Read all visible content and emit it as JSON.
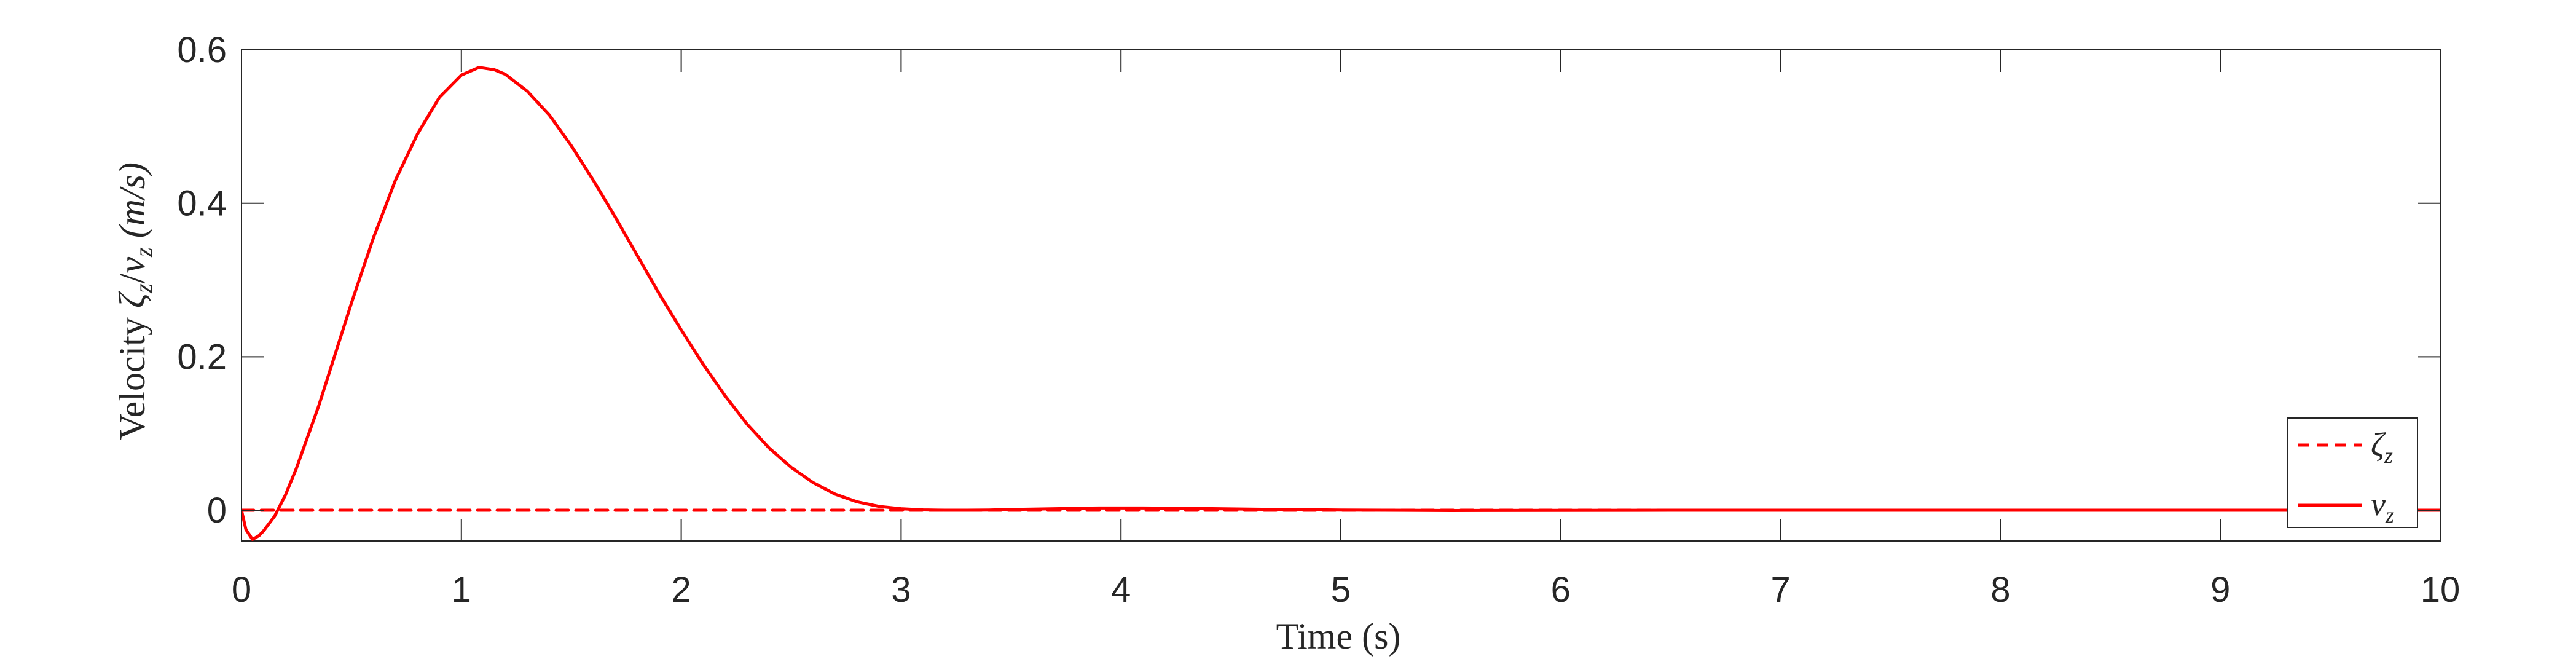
{
  "chart_data": {
    "type": "line",
    "title": "",
    "xlabel": {
      "prefix": "Time ",
      "unit": "(s)"
    },
    "ylabel": {
      "prefix": "Velocity ",
      "sym1": "ζ",
      "sub1": "z",
      "slash": "/",
      "sym2": "v",
      "sub2": "z",
      "unit": " (m/s)"
    },
    "xlim": [
      0,
      10
    ],
    "ylim": [
      -0.04,
      0.6
    ],
    "xticks": [
      "0",
      "1",
      "2",
      "3",
      "4",
      "5",
      "6",
      "7",
      "8",
      "9",
      "10"
    ],
    "yticks": [
      "0",
      "0.2",
      "0.4",
      "0.6"
    ],
    "ytick_values": [
      0,
      0.2,
      0.4,
      0.6
    ],
    "grid": false,
    "legend_position": "right",
    "series": [
      {
        "name": "ζ_z",
        "symbol": "ζ",
        "sub": "z",
        "color": "#ff0000",
        "style": "dashed",
        "x": [
          0,
          10
        ],
        "values": [
          0,
          0
        ]
      },
      {
        "name": "v_z",
        "symbol": "v",
        "sub": "z",
        "color": "#ff0000",
        "style": "solid",
        "x": [
          0,
          0.02,
          0.05,
          0.08,
          0.1,
          0.15,
          0.2,
          0.25,
          0.3,
          0.35,
          0.4,
          0.5,
          0.6,
          0.7,
          0.8,
          0.9,
          1.0,
          1.08,
          1.15,
          1.2,
          1.3,
          1.4,
          1.5,
          1.6,
          1.7,
          1.8,
          1.9,
          2.0,
          2.1,
          2.2,
          2.3,
          2.4,
          2.5,
          2.6,
          2.7,
          2.8,
          2.9,
          3.0,
          3.1,
          3.2,
          3.3,
          3.4,
          3.5,
          3.7,
          3.9,
          4.0,
          4.1,
          4.3,
          4.5,
          4.7,
          5.0,
          5.5,
          6.0,
          6.5,
          7.0,
          8.0,
          9.0,
          10.0
        ],
        "values": [
          0,
          -0.025,
          -0.038,
          -0.033,
          -0.027,
          -0.008,
          0.02,
          0.055,
          0.095,
          0.135,
          0.18,
          0.27,
          0.355,
          0.43,
          0.49,
          0.538,
          0.567,
          0.577,
          0.574,
          0.568,
          0.546,
          0.515,
          0.475,
          0.43,
          0.382,
          0.332,
          0.282,
          0.235,
          0.19,
          0.149,
          0.112,
          0.081,
          0.056,
          0.036,
          0.021,
          0.011,
          0.005,
          0.002,
          0.0005,
          0,
          0,
          0.0003,
          0.001,
          0.002,
          0.003,
          0.003,
          0.003,
          0.0025,
          0.0018,
          0.001,
          0.0003,
          -0.0003,
          -0.0002,
          0,
          0,
          0,
          0,
          0
        ]
      }
    ]
  }
}
